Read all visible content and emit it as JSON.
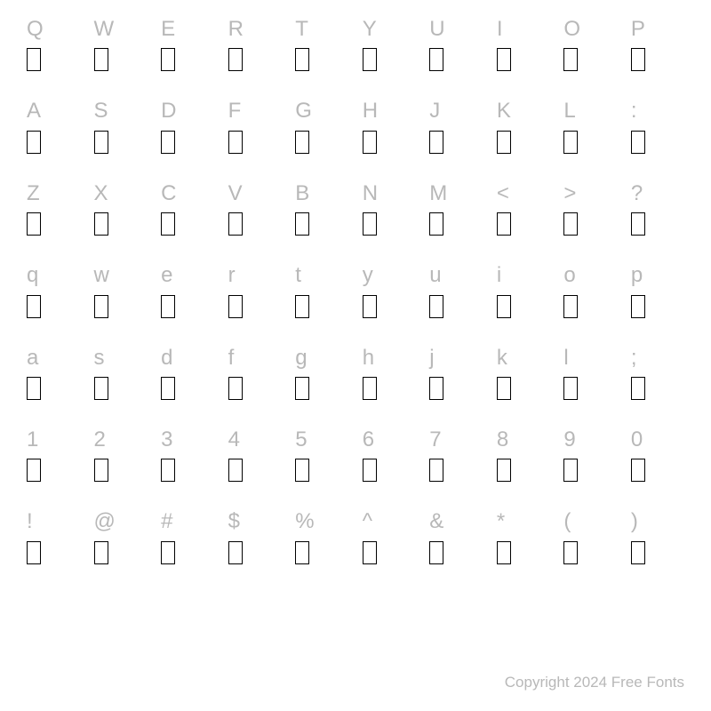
{
  "rows": [
    [
      "Q",
      "W",
      "E",
      "R",
      "T",
      "Y",
      "U",
      "I",
      "O",
      "P"
    ],
    [
      "A",
      "S",
      "D",
      "F",
      "G",
      "H",
      "J",
      "K",
      "L",
      ":"
    ],
    [
      "Z",
      "X",
      "C",
      "V",
      "B",
      "N",
      "M",
      "<",
      ">",
      "?"
    ],
    [
      "q",
      "w",
      "e",
      "r",
      "t",
      "y",
      "u",
      "i",
      "o",
      "p"
    ],
    [
      "a",
      "s",
      "d",
      "f",
      "g",
      "h",
      "j",
      "k",
      "l",
      ";"
    ],
    [
      "1",
      "2",
      "3",
      "4",
      "5",
      "6",
      "7",
      "8",
      "9",
      "0"
    ],
    [
      "!",
      "@",
      "#",
      "$",
      "%",
      "^",
      "&",
      "*",
      "(",
      ")"
    ]
  ],
  "footer": "Copyright 2024 Free Fonts",
  "styling": {
    "background_color": "#ffffff",
    "label_color": "#b8b8b8",
    "label_fontsize": 24,
    "glyph_box_border": "#000000",
    "glyph_box_width": 16,
    "glyph_box_height": 26,
    "footer_color": "#b8b8b8",
    "footer_fontsize": 17,
    "row_gap": 32,
    "columns": 10,
    "rows_count": 7
  }
}
